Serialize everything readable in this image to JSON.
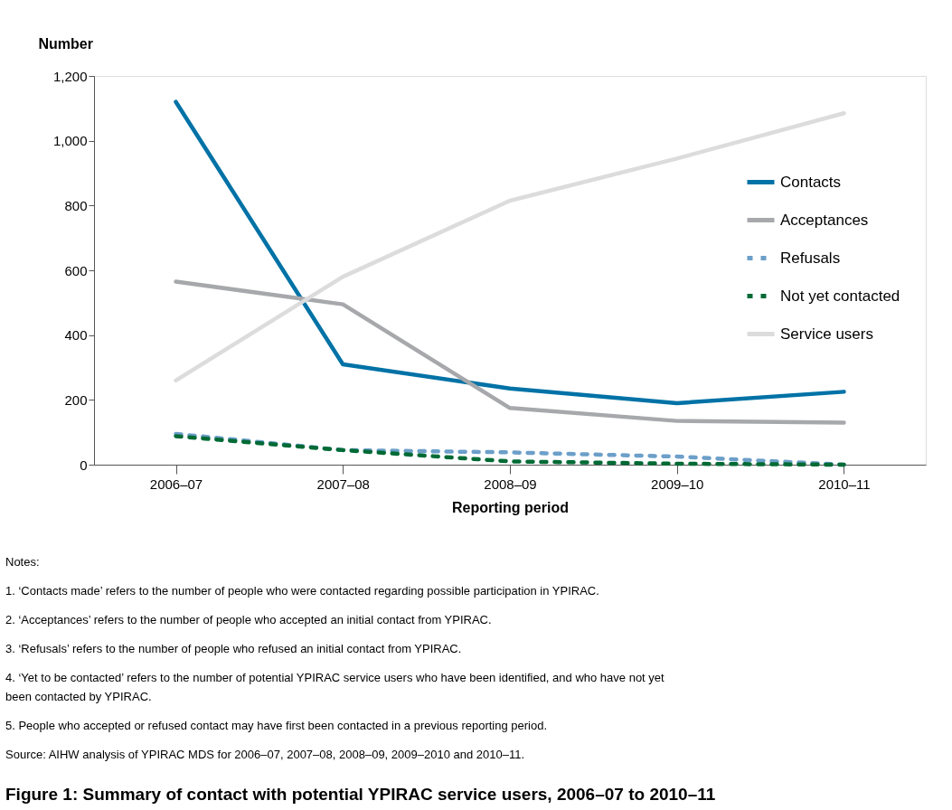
{
  "chart_data": {
    "type": "line",
    "title": "Figure 1: Summary of contact with potential YPIRAC service users, 2006–07 to 2010–11",
    "xlabel": "Reporting period",
    "ylabel": "Number",
    "categories": [
      "2006–07",
      "2007–08",
      "2008–09",
      "2009–10",
      "2010–11"
    ],
    "ylim": [
      0,
      1200
    ],
    "yticks": [
      0,
      200,
      400,
      600,
      800,
      {
        "value": 1000,
        "label": "1,000"
      },
      {
        "value": 1200,
        "label": "1,200"
      }
    ],
    "grid": false,
    "legend": "right",
    "series": [
      {
        "name": "Contacts",
        "color": "#0072a6",
        "line_style": "solid",
        "values": [
          1120,
          310,
          235,
          190,
          225
        ]
      },
      {
        "name": "Acceptances",
        "color": "#a7a8ab",
        "line_style": "solid",
        "values": [
          565,
          495,
          175,
          135,
          130
        ]
      },
      {
        "name": "Refusals",
        "color": "#6c9fc9",
        "line_style": "dashed",
        "values": [
          95,
          45,
          38,
          25,
          0
        ]
      },
      {
        "name": "Not yet contacted",
        "color": "#006a35",
        "line_style": "dashed",
        "values": [
          88,
          45,
          10,
          3,
          0
        ]
      },
      {
        "name": "Service users",
        "color": "#dcdcdd",
        "line_style": "solid",
        "values": [
          260,
          580,
          815,
          945,
          1085
        ]
      }
    ],
    "annotations": [
      "Notes:",
      "1.  ‘Contacts made’ refers to the number of people who were contacted regarding possible participation in YPIRAC.",
      "2.  ‘Acceptances’ refers to the number of people who accepted an initial contact from YPIRAC.",
      "3.  ‘Refusals’ refers to the number of people who refused an initial contact from YPIRAC.",
      "4.  ‘Yet to be contacted’ refers to the number of potential YPIRAC service users who have been identified, and who have not yet been contacted by YPIRAC.",
      "5.  People who accepted or refused contact may have first been contacted in a previous reporting period.",
      "Source: AIHW analysis of YPIRAC MDS for 2006–07, 2007–08, 2008–09, 2009–2010 and 2010–11."
    ]
  }
}
